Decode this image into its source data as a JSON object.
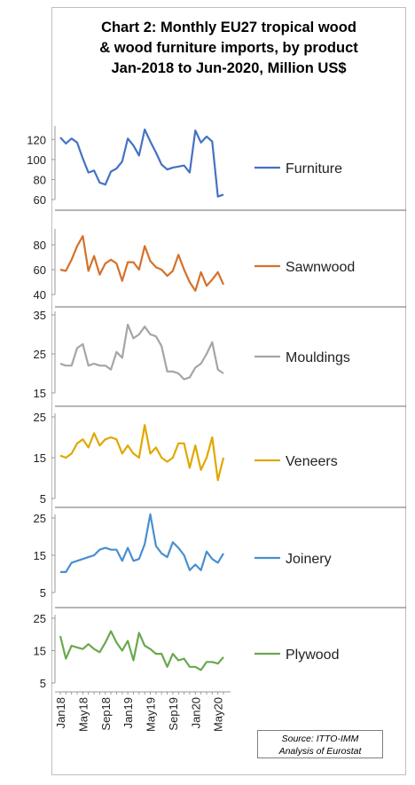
{
  "title": {
    "line1": "Chart 2: Monthly EU27 tropical wood",
    "line2": "& wood furniture imports, by product",
    "line3": "Jan-2018 to Jun-2020, Million US$"
  },
  "source": {
    "line1": "Source: ITTO-IMM",
    "line2": "Analysis of Eurostat"
  },
  "colors": {
    "Furniture": "#4472c4",
    "Sawnwood": "#d5712a",
    "Mouldings": "#a5a5a5",
    "Veneers": "#e0a800",
    "Joinery": "#4a8fcf",
    "Plywood": "#6aa84f"
  },
  "chart_data": {
    "type": "line",
    "x": [
      "Jan18",
      "Feb18",
      "Mar18",
      "Apr18",
      "May18",
      "Jun18",
      "Jul18",
      "Aug18",
      "Sep18",
      "Oct18",
      "Nov18",
      "Dec18",
      "Jan19",
      "Feb19",
      "Mar19",
      "Apr19",
      "May19",
      "Jun19",
      "Jul19",
      "Aug19",
      "Sep19",
      "Oct19",
      "Nov19",
      "Dec19",
      "Jan20",
      "Feb20",
      "Mar20",
      "Apr20",
      "May20",
      "Jun20"
    ],
    "x_tick_labels": [
      "Jan18",
      "May18",
      "Sep18",
      "Jan19",
      "May19",
      "Sep19",
      "Jan20",
      "May20"
    ],
    "legend_position": "right of each panel",
    "grid": false,
    "panels": [
      {
        "name": "Furniture",
        "ylim": [
          60,
          130
        ],
        "yticks": [
          "60",
          "80",
          "100",
          "120"
        ],
        "values": [
          122,
          116,
          121,
          117,
          101,
          87,
          89,
          77,
          75,
          88,
          91,
          98,
          121,
          114,
          104,
          130,
          118,
          107,
          95,
          90,
          92,
          93,
          94,
          87,
          129,
          117,
          123,
          118,
          63,
          65
        ]
      },
      {
        "name": "Sawnwood",
        "ylim": [
          40,
          90
        ],
        "yticks": [
          "40",
          "60",
          "80"
        ],
        "values": [
          60,
          59,
          68,
          79,
          87,
          59,
          71,
          56,
          65,
          68,
          65,
          51,
          66,
          66,
          60,
          79,
          67,
          62,
          60,
          55,
          59,
          72,
          60,
          50,
          43,
          58,
          47,
          52,
          58,
          48
        ]
      },
      {
        "name": "Mouldings",
        "ylim": [
          15,
          35
        ],
        "yticks": [
          "15",
          "25",
          "35"
        ],
        "values": [
          22.5,
          22,
          22,
          26.5,
          27.5,
          22,
          22.5,
          22,
          22,
          21,
          25.5,
          24,
          32.5,
          29,
          30,
          32,
          30,
          29.5,
          27,
          20.5,
          20.5,
          20,
          18.5,
          19,
          21.5,
          22.5,
          25,
          28,
          21,
          20
        ]
      },
      {
        "name": "Veneers",
        "ylim": [
          5,
          25
        ],
        "yticks": [
          "5",
          "15",
          "25"
        ],
        "values": [
          15.5,
          15,
          16,
          18.5,
          19.5,
          17.5,
          21,
          18,
          19.5,
          20,
          19.5,
          16,
          18,
          16,
          15,
          23,
          16,
          17.5,
          15,
          14,
          15,
          18.5,
          18.5,
          12.5,
          18,
          12,
          15,
          20,
          9.5,
          15
        ]
      },
      {
        "name": "Joinery",
        "ylim": [
          5,
          25
        ],
        "yticks": [
          "5",
          "15",
          "25"
        ],
        "values": [
          10.5,
          10.5,
          13,
          13.5,
          14,
          14.5,
          15,
          16.5,
          17,
          16.5,
          16.5,
          13.5,
          17,
          13.5,
          14,
          18,
          26,
          17.5,
          15.5,
          14.5,
          18.5,
          17,
          15,
          11,
          12.5,
          11,
          16,
          14,
          13,
          15.5
        ]
      },
      {
        "name": "Plywood",
        "ylim": [
          5,
          25
        ],
        "yticks": [
          "5",
          "15",
          "25"
        ],
        "values": [
          19.5,
          12.5,
          16.5,
          16,
          15.5,
          17,
          15.5,
          14.5,
          17.5,
          21,
          17.5,
          15,
          18,
          12,
          20.5,
          16.5,
          15.5,
          14,
          14,
          10,
          14,
          12,
          12.5,
          10,
          10,
          9,
          11.5,
          11.5,
          11,
          13
        ]
      }
    ]
  }
}
